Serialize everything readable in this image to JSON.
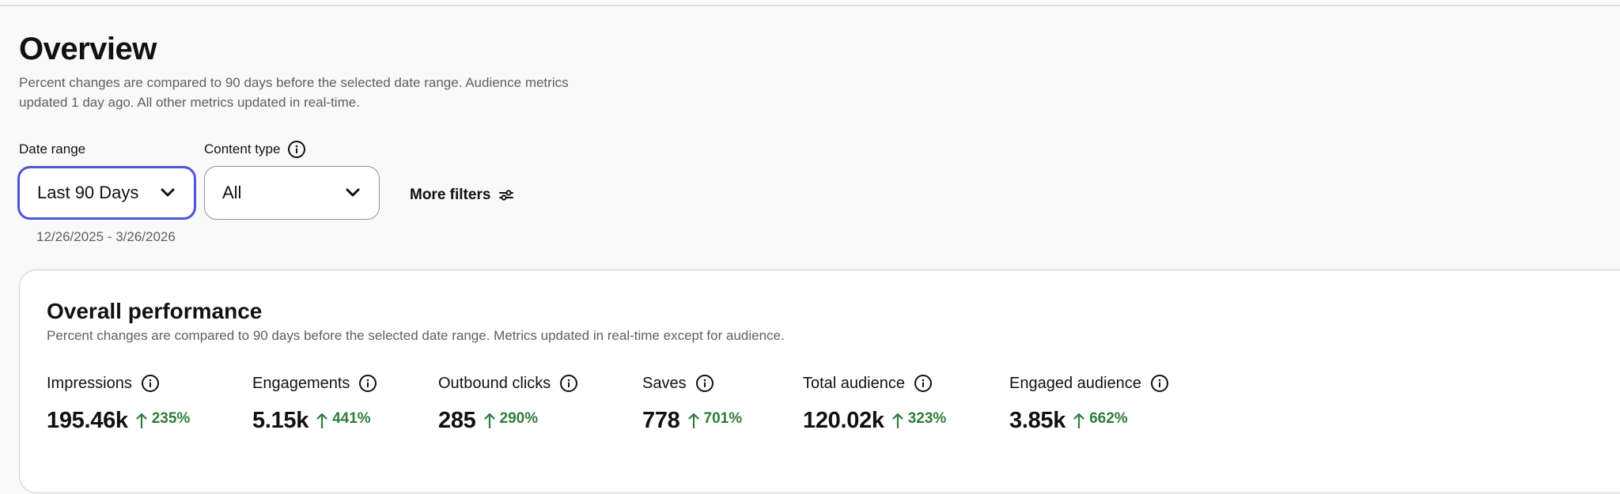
{
  "header": {
    "title": "Overview",
    "description": "Percent changes are compared to 90 days before the selected date range. Audience metrics updated 1 day ago. All other metrics updated in real-time."
  },
  "filters": {
    "date_range": {
      "label": "Date range",
      "value": "Last 90 Days",
      "sub": "12/26/2025 - 3/26/2026"
    },
    "content_type": {
      "label": "Content type",
      "value": "All"
    },
    "more_filters_label": "More filters"
  },
  "performance": {
    "title": "Overall performance",
    "description": "Percent changes are compared to 90 days before the selected date range. Metrics updated in real-time except for audience.",
    "metrics": [
      {
        "label": "Impressions",
        "value": "195.46k",
        "change": "235%"
      },
      {
        "label": "Engagements",
        "value": "5.15k",
        "change": "441%"
      },
      {
        "label": "Outbound clicks",
        "value": "285",
        "change": "290%"
      },
      {
        "label": "Saves",
        "value": "778",
        "change": "701%"
      },
      {
        "label": "Total audience",
        "value": "120.02k",
        "change": "323%"
      },
      {
        "label": "Engaged audience",
        "value": "3.85k",
        "change": "662%"
      }
    ]
  },
  "icons": {
    "info": "info-icon",
    "chevron": "chevron-down-icon",
    "filters": "sliders-icon",
    "trend": "arrow-up-icon"
  },
  "colors": {
    "focus_border": "#4a56d6",
    "positive": "#2f7d3b",
    "muted_text": "#5f5f5f"
  }
}
